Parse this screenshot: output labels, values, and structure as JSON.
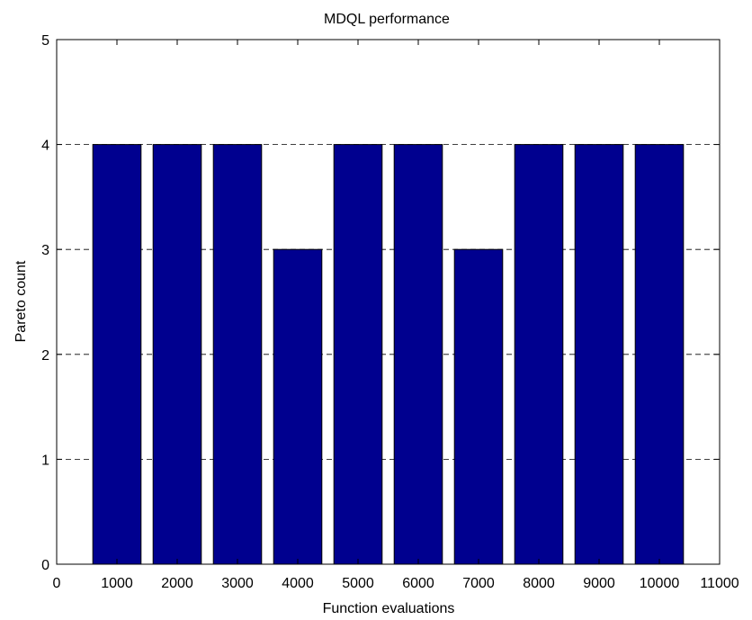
{
  "chart_data": {
    "type": "bar",
    "title": "MDQL performance",
    "xlabel": "Function evaluations",
    "ylabel": "Pareto count",
    "categories": [
      "1000",
      "2000",
      "3000",
      "4000",
      "5000",
      "6000",
      "7000",
      "8000",
      "9000",
      "10000"
    ],
    "x": [
      1000,
      2000,
      3000,
      4000,
      5000,
      6000,
      7000,
      8000,
      9000,
      10000
    ],
    "values": [
      4,
      4,
      4,
      3,
      4,
      4,
      3,
      4,
      4,
      4
    ],
    "xlim": [
      0,
      11000
    ],
    "ylim": [
      0,
      5
    ],
    "xticks": [
      0,
      1000,
      2000,
      3000,
      4000,
      5000,
      6000,
      7000,
      8000,
      9000,
      10000,
      11000
    ],
    "yticks": [
      0,
      1,
      2,
      3,
      4,
      5
    ],
    "grid": "y-dashed",
    "bar_color": "#00008f",
    "bar_width": 800
  }
}
